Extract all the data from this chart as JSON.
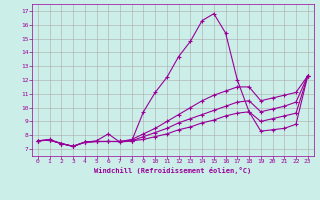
{
  "xlabel": "Windchill (Refroidissement éolien,°C)",
  "background_color": "#cceee8",
  "line_color": "#990099",
  "grid_color": "#aaaaaa",
  "xlim": [
    -0.5,
    23.5
  ],
  "ylim": [
    6.5,
    17.5
  ],
  "xticks": [
    0,
    1,
    2,
    3,
    4,
    5,
    6,
    7,
    8,
    9,
    10,
    11,
    12,
    13,
    14,
    15,
    16,
    17,
    18,
    19,
    20,
    21,
    22,
    23
  ],
  "yticks": [
    7,
    8,
    9,
    10,
    11,
    12,
    13,
    14,
    15,
    16,
    17
  ],
  "line1_x": [
    0,
    1,
    2,
    3,
    4,
    5,
    6,
    7,
    8,
    9,
    10,
    11,
    12,
    13,
    14,
    15,
    16,
    17,
    18,
    19,
    20,
    21,
    22,
    23
  ],
  "line1_y": [
    7.6,
    7.7,
    7.4,
    7.2,
    7.5,
    7.6,
    8.1,
    7.5,
    7.6,
    9.7,
    11.1,
    12.2,
    13.7,
    14.8,
    16.3,
    16.8,
    15.4,
    12.0,
    9.7,
    8.3,
    8.4,
    8.5,
    8.8,
    12.3
  ],
  "line2_x": [
    0,
    1,
    2,
    3,
    4,
    5,
    6,
    7,
    8,
    9,
    10,
    11,
    12,
    13,
    14,
    15,
    16,
    17,
    18,
    19,
    20,
    21,
    22,
    23
  ],
  "line2_y": [
    7.6,
    7.65,
    7.4,
    7.2,
    7.5,
    7.55,
    7.55,
    7.55,
    7.7,
    8.1,
    8.5,
    9.0,
    9.5,
    10.0,
    10.5,
    10.9,
    11.2,
    11.5,
    11.5,
    10.5,
    10.7,
    10.9,
    11.1,
    12.3
  ],
  "line3_x": [
    0,
    1,
    2,
    3,
    4,
    5,
    6,
    7,
    8,
    9,
    10,
    11,
    12,
    13,
    14,
    15,
    16,
    17,
    18,
    19,
    20,
    21,
    22,
    23
  ],
  "line3_y": [
    7.6,
    7.65,
    7.4,
    7.2,
    7.5,
    7.55,
    7.55,
    7.55,
    7.6,
    7.9,
    8.2,
    8.5,
    8.9,
    9.2,
    9.5,
    9.8,
    10.1,
    10.4,
    10.5,
    9.7,
    9.9,
    10.1,
    10.4,
    12.3
  ],
  "line4_x": [
    0,
    1,
    2,
    3,
    4,
    5,
    6,
    7,
    8,
    9,
    10,
    11,
    12,
    13,
    14,
    15,
    16,
    17,
    18,
    19,
    20,
    21,
    22,
    23
  ],
  "line4_y": [
    7.6,
    7.65,
    7.4,
    7.2,
    7.5,
    7.55,
    7.55,
    7.55,
    7.6,
    7.7,
    7.9,
    8.1,
    8.4,
    8.6,
    8.9,
    9.1,
    9.4,
    9.6,
    9.7,
    9.0,
    9.2,
    9.4,
    9.6,
    12.3
  ]
}
